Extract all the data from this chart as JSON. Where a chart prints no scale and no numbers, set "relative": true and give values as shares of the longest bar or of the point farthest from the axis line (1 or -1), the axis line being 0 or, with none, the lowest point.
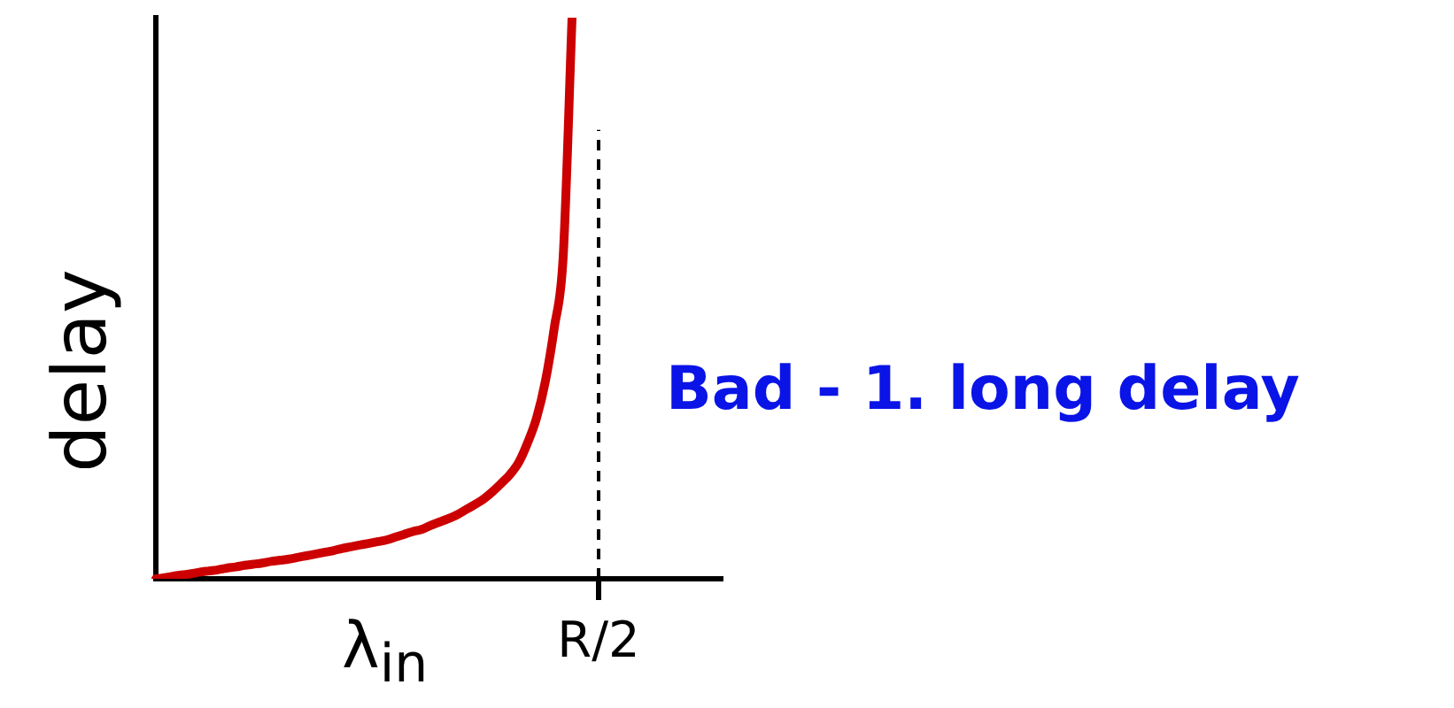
{
  "chart_data": {
    "type": "line",
    "relative": true,
    "xlabel": "λ$_{in}$",
    "ylabel": "delay",
    "categories": [
      null,
      null,
      null,
      null,
      null,
      null,
      null,
      null,
      null,
      null,
      null,
      null,
      null,
      null,
      null,
      null,
      null,
      null,
      null,
      null,
      null,
      null,
      null,
      null,
      null,
      null,
      null,
      null,
      null,
      null,
      null,
      null,
      null,
      null,
      null,
      null,
      null,
      null,
      null,
      null,
      null,
      null,
      null,
      null,
      null,
      null,
      null,
      null,
      null,
      null,
      null,
      null,
      null,
      null,
      null,
      null,
      null,
      null,
      null,
      null,
      null,
      null,
      null,
      null,
      null
    ],
    "series": [
      {
        "color": "#cc0000",
        "values": [
          0,
          0.002,
          0.005,
          0.007,
          0.009,
          0.012,
          0.014,
          0.016,
          0.019,
          0.021,
          0.024,
          0.026,
          0.028,
          0.031,
          0.033,
          0.035,
          0.038,
          0.041,
          0.044,
          0.047,
          0.05,
          0.054,
          0.057,
          0.06,
          0.063,
          0.066,
          0.069,
          0.074,
          0.079,
          0.084,
          0.088,
          0.095,
          0.101,
          0.107,
          0.114,
          0.123,
          0.132,
          0.142,
          0.155,
          0.17,
          0.186,
          0.208,
          0.243,
          0.287,
          0.353,
          0.448,
          0.574,
          1,
          null,
          null,
          null,
          null,
          null,
          null,
          null,
          null,
          null,
          null,
          null,
          null,
          null,
          null,
          null,
          null,
          null
        ]
      }
    ],
    "annotations": [
      "Bad - 1. long delay",
      "R/2"
    ],
    "marker": "none",
    "line_style": "solid",
    "legend": false
  }
}
